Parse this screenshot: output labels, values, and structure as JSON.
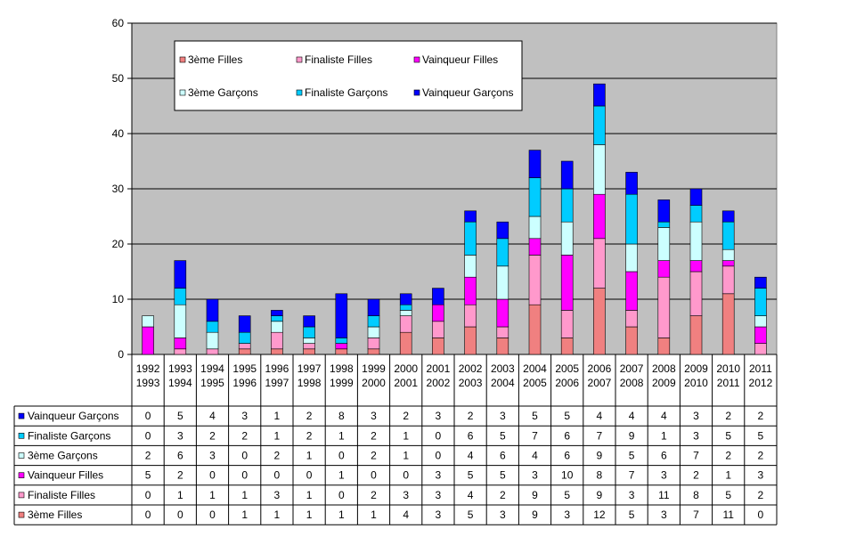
{
  "chart_data": {
    "type": "bar",
    "stacked": true,
    "ylim": [
      0,
      60
    ],
    "yticks": [
      0,
      10,
      20,
      30,
      40,
      50,
      60
    ],
    "grid": true,
    "legend_placement": "top-left",
    "categories": [
      [
        "1992",
        "1993"
      ],
      [
        "1993",
        "1994"
      ],
      [
        "1994",
        "1995"
      ],
      [
        "1995",
        "1996"
      ],
      [
        "1996",
        "1997"
      ],
      [
        "1997",
        "1998"
      ],
      [
        "1998",
        "1999"
      ],
      [
        "1999",
        "2000"
      ],
      [
        "2000",
        "2001"
      ],
      [
        "2001",
        "2002"
      ],
      [
        "2002",
        "2003"
      ],
      [
        "2003",
        "2004"
      ],
      [
        "2004",
        "2005"
      ],
      [
        "2005",
        "2006"
      ],
      [
        "2006",
        "2007"
      ],
      [
        "2007",
        "2008"
      ],
      [
        "2008",
        "2009"
      ],
      [
        "2009",
        "2010"
      ],
      [
        "2010",
        "2011"
      ],
      [
        "2011",
        "2012"
      ]
    ],
    "series": [
      {
        "name": "3ème Filles",
        "color": "#f08080",
        "values": [
          0,
          0,
          0,
          1,
          1,
          1,
          1,
          1,
          4,
          3,
          5,
          3,
          9,
          3,
          12,
          5,
          3,
          7,
          11,
          0
        ]
      },
      {
        "name": "Finaliste Filles",
        "color": "#ff99cc",
        "values": [
          0,
          1,
          1,
          1,
          3,
          1,
          0,
          2,
          3,
          3,
          4,
          2,
          9,
          5,
          9,
          3,
          11,
          8,
          5,
          2
        ]
      },
      {
        "name": "Vainqueur Filles",
        "color": "#ff00ff",
        "values": [
          5,
          2,
          0,
          0,
          0,
          0,
          1,
          0,
          0,
          3,
          5,
          5,
          3,
          10,
          8,
          7,
          3,
          2,
          1,
          3
        ]
      },
      {
        "name": "3ème Garçons",
        "color": "#ccffff",
        "values": [
          2,
          6,
          3,
          0,
          2,
          1,
          0,
          2,
          1,
          0,
          4,
          6,
          4,
          6,
          9,
          5,
          6,
          7,
          2,
          2
        ]
      },
      {
        "name": "Finaliste Garçons",
        "color": "#00ccff",
        "values": [
          0,
          3,
          2,
          2,
          1,
          2,
          1,
          2,
          1,
          0,
          6,
          5,
          7,
          6,
          7,
          9,
          1,
          3,
          5,
          5
        ]
      },
      {
        "name": "Vainqueur Garçons",
        "color": "#0000ff",
        "values": [
          0,
          5,
          4,
          3,
          1,
          2,
          8,
          3,
          2,
          3,
          2,
          3,
          5,
          5,
          4,
          4,
          4,
          3,
          2,
          2
        ]
      }
    ],
    "legend_order": [
      0,
      1,
      2,
      3,
      4,
      5
    ],
    "table_row_order": [
      5,
      4,
      3,
      2,
      1,
      0
    ],
    "plot_background": "#c0c0c0"
  }
}
